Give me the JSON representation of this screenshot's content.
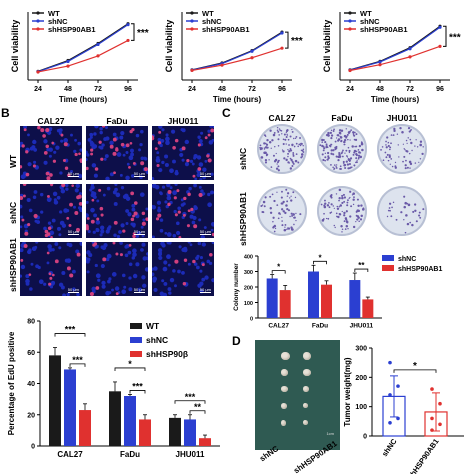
{
  "panels": {
    "B": "B",
    "C": "C",
    "D": "D"
  },
  "top_legend": [
    "WT",
    "shNC",
    "shHSP90AB1"
  ],
  "chart_data": [
    {
      "type": "line",
      "title": "",
      "xlabel": "Time (hours)",
      "ylabel": "Cell viability",
      "x": [
        24,
        48,
        72,
        96
      ],
      "ylim": [
        0,
        2.2
      ],
      "series": [
        {
          "name": "WT",
          "values": [
            0.28,
            0.63,
            1.18,
            1.82
          ],
          "color": "#1a1a1a"
        },
        {
          "name": "shNC",
          "values": [
            0.27,
            0.6,
            1.15,
            1.79
          ],
          "color": "#2b3fd1"
        },
        {
          "name": "shHSP90AB1",
          "values": [
            0.26,
            0.45,
            0.78,
            1.28
          ],
          "color": "#e0312f"
        }
      ],
      "significance": "***"
    },
    {
      "type": "line",
      "title": "",
      "xlabel": "Time (hours)",
      "ylabel": "Cell viability",
      "x": [
        24,
        48,
        72,
        96
      ],
      "ylim": [
        0,
        2.2
      ],
      "series": [
        {
          "name": "WT",
          "values": [
            0.33,
            0.55,
            0.95,
            1.55
          ],
          "color": "#1a1a1a"
        },
        {
          "name": "shNC",
          "values": [
            0.32,
            0.53,
            0.93,
            1.52
          ],
          "color": "#2b3fd1"
        },
        {
          "name": "shHSP90AB1",
          "values": [
            0.31,
            0.48,
            0.72,
            1.03
          ],
          "color": "#e0312f"
        }
      ],
      "significance": "***"
    },
    {
      "type": "line",
      "title": "",
      "xlabel": "Time (hours)",
      "ylabel": "Cell viability",
      "x": [
        24,
        48,
        72,
        96
      ],
      "ylim": [
        0,
        2.0
      ],
      "series": [
        {
          "name": "WT",
          "values": [
            0.3,
            0.55,
            0.95,
            1.58
          ],
          "color": "#1a1a1a"
        },
        {
          "name": "shNC",
          "values": [
            0.29,
            0.53,
            0.92,
            1.55
          ],
          "color": "#2b3fd1"
        },
        {
          "name": "shHSP90AB1",
          "values": [
            0.28,
            0.45,
            0.68,
            0.99
          ],
          "color": "#e0312f"
        }
      ],
      "significance": "***"
    },
    {
      "type": "bar",
      "title": "",
      "xlabel": "",
      "ylabel": "Percentage of EdU positive",
      "categories": [
        "CAL27",
        "FaDu",
        "JHU011"
      ],
      "ylim": [
        0,
        80
      ],
      "yticks": [
        0,
        20,
        40,
        60,
        80
      ],
      "series": [
        {
          "name": "WT",
          "values": [
            58,
            35,
            18
          ],
          "errors": [
            5,
            6,
            2
          ],
          "color": "#1a1a1a"
        },
        {
          "name": "shNC",
          "values": [
            49,
            32,
            17
          ],
          "errors": [
            1,
            1,
            3
          ],
          "color": "#2b3fd1"
        },
        {
          "name": "shHSP90β",
          "values": [
            23,
            17,
            5
          ],
          "errors": [
            4,
            3,
            2
          ],
          "color": "#e0312f"
        }
      ],
      "significance": [
        {
          "category": "CAL27",
          "labels": [
            "***",
            "***"
          ]
        },
        {
          "category": "FaDu",
          "labels": [
            "*",
            "***"
          ]
        },
        {
          "category": "JHU011",
          "labels": [
            "***",
            "**"
          ]
        }
      ]
    },
    {
      "type": "bar",
      "title": "",
      "xlabel": "",
      "ylabel": "Colony number",
      "categories": [
        "CAL27",
        "FaDu",
        "JHU011"
      ],
      "ylim": [
        0,
        400
      ],
      "yticks": [
        0,
        100,
        200,
        300,
        400
      ],
      "series": [
        {
          "name": "shNC",
          "values": [
            255,
            300,
            245
          ],
          "errors": [
            25,
            40,
            45
          ],
          "color": "#2b3fd1"
        },
        {
          "name": "shHSP90AB1",
          "values": [
            180,
            215,
            120
          ],
          "errors": [
            30,
            25,
            15
          ],
          "color": "#e0312f"
        }
      ],
      "significance": [
        "*",
        "*",
        "**"
      ]
    },
    {
      "type": "bar",
      "title": "",
      "xlabel": "",
      "ylabel": "Tumor weight(mg)",
      "categories": [
        "shNC",
        "shHSP90AB1"
      ],
      "ylim": [
        0,
        300
      ],
      "yticks": [
        0,
        100,
        200,
        300
      ],
      "series": [
        {
          "name": "Tumor weight",
          "values": [
            135,
            82
          ],
          "errors": [
            70,
            65
          ]
        }
      ],
      "points": [
        [
          250,
          170,
          140,
          60,
          45
        ],
        [
          160,
          110,
          60,
          40,
          20
        ]
      ],
      "colors": [
        "#2b3fd1",
        "#e0312f"
      ],
      "significance": "*"
    }
  ],
  "edu": {
    "columns": [
      "CAL27",
      "FaDu",
      "JHU011"
    ],
    "rows": [
      "WT",
      "shNC",
      "shHSP90AB1"
    ],
    "scale_bar": "50 μm"
  },
  "colony": {
    "columns": [
      "CAL27",
      "FaDu",
      "JHU011"
    ],
    "rows": [
      "shNC",
      "shHSP90AB1"
    ]
  },
  "tumor_photo": {
    "labels": [
      "shNC",
      "shHSP90AB1"
    ],
    "scale_bar": "1cm"
  },
  "colors": {
    "nucleus_blue": "#1c2bb8",
    "edu_pink": "#d0407e",
    "dish_bg": "#dde3ee",
    "colony_purple": "#6a5aa8"
  }
}
